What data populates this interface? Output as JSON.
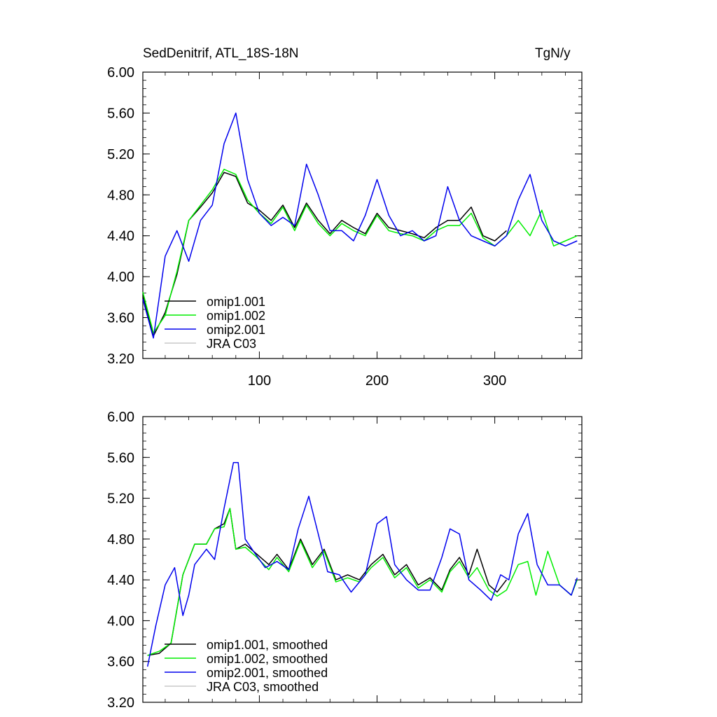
{
  "figure": {
    "title_left": "SedDenitrif, ATL_18S-18N",
    "title_right": "TgN/y"
  },
  "chart_data": [
    {
      "type": "line",
      "panel": "top",
      "xlabel": "",
      "ylabel": "",
      "xlim": [
        1,
        374
      ],
      "ylim": [
        3.2,
        6.0
      ],
      "x_ticks": [
        100,
        200,
        300
      ],
      "x_tick_labels": [
        "100",
        "200",
        "300"
      ],
      "y_ticks": [
        3.2,
        3.6,
        4.0,
        4.4,
        4.8,
        5.2,
        5.6,
        6.0
      ],
      "y_tick_labels": [
        "3.20",
        "3.60",
        "4.00",
        "4.40",
        "4.80",
        "5.20",
        "5.60",
        "6.00"
      ],
      "grid": false,
      "legend_position": "bottom-left",
      "series": [
        {
          "name": "omip1.001",
          "color": "#000000",
          "x": [
            1,
            10,
            20,
            30,
            40,
            50,
            60,
            70,
            80,
            90,
            100,
            110,
            120,
            130,
            140,
            150,
            160,
            170,
            180,
            190,
            200,
            210,
            220,
            230,
            240,
            250,
            260,
            270,
            280,
            290,
            300,
            310
          ],
          "values": [
            3.82,
            3.42,
            3.65,
            4.02,
            4.55,
            4.68,
            4.82,
            5.02,
            4.98,
            4.72,
            4.65,
            4.55,
            4.7,
            4.48,
            4.72,
            4.55,
            4.42,
            4.55,
            4.48,
            4.42,
            4.62,
            4.48,
            4.45,
            4.42,
            4.38,
            4.48,
            4.55,
            4.55,
            4.68,
            4.4,
            4.35,
            4.45
          ]
        },
        {
          "name": "omip1.002",
          "color": "#00ee00",
          "x": [
            1,
            10,
            20,
            30,
            40,
            50,
            60,
            70,
            80,
            90,
            100,
            110,
            120,
            130,
            140,
            150,
            160,
            170,
            180,
            190,
            200,
            210,
            220,
            230,
            240,
            250,
            260,
            270,
            280,
            290,
            300,
            310,
            320,
            330,
            340,
            350,
            360,
            370
          ],
          "values": [
            3.85,
            3.45,
            3.62,
            4.05,
            4.55,
            4.7,
            4.85,
            5.05,
            5.0,
            4.75,
            4.62,
            4.52,
            4.68,
            4.45,
            4.7,
            4.52,
            4.4,
            4.52,
            4.45,
            4.4,
            4.6,
            4.45,
            4.42,
            4.4,
            4.35,
            4.45,
            4.5,
            4.5,
            4.62,
            4.38,
            4.3,
            4.4,
            4.55,
            4.4,
            4.65,
            4.3,
            4.35,
            4.4
          ]
        },
        {
          "name": "omip2.001",
          "color": "#0000ee",
          "x": [
            1,
            10,
            20,
            30,
            40,
            50,
            60,
            70,
            80,
            90,
            100,
            110,
            120,
            130,
            140,
            150,
            160,
            170,
            180,
            190,
            200,
            210,
            220,
            230,
            240,
            250,
            260,
            270,
            280,
            290,
            300,
            310,
            320,
            330,
            340,
            350,
            360,
            370
          ],
          "values": [
            3.78,
            3.4,
            4.2,
            4.45,
            4.15,
            4.55,
            4.7,
            5.3,
            5.6,
            4.95,
            4.62,
            4.5,
            4.58,
            4.5,
            5.1,
            4.8,
            4.45,
            4.45,
            4.35,
            4.6,
            4.95,
            4.6,
            4.4,
            4.45,
            4.35,
            4.4,
            4.88,
            4.55,
            4.4,
            4.35,
            4.3,
            4.4,
            4.75,
            5.0,
            4.55,
            4.35,
            4.3,
            4.35
          ]
        },
        {
          "name": "JRA C03",
          "color": "#c8c8c8",
          "x": [],
          "values": []
        }
      ]
    },
    {
      "type": "line",
      "panel": "bottom",
      "xlabel": "",
      "ylabel": "",
      "xlim": [
        1,
        374
      ],
      "ylim": [
        3.2,
        6.0
      ],
      "x_ticks": [
        100,
        200,
        300
      ],
      "x_tick_labels": [],
      "y_ticks": [
        3.2,
        3.6,
        4.0,
        4.4,
        4.8,
        5.2,
        5.6,
        6.0
      ],
      "y_tick_labels": [
        "3.20",
        "3.60",
        "4.00",
        "4.40",
        "4.80",
        "5.20",
        "5.60",
        "6.00"
      ],
      "grid": false,
      "legend_position": "bottom-left",
      "series": [
        {
          "name": "omip1.001, smoothed",
          "color": "#000000",
          "x": [
            5,
            15,
            25,
            35,
            45,
            55,
            62,
            70,
            75,
            80,
            88,
            98,
            108,
            115,
            125,
            135,
            145,
            155,
            165,
            175,
            185,
            195,
            205,
            215,
            225,
            235,
            245,
            255,
            262,
            270,
            278,
            285,
            295,
            302,
            310
          ],
          "values": [
            3.66,
            3.68,
            3.78,
            4.45,
            4.75,
            4.75,
            4.9,
            4.95,
            5.1,
            4.7,
            4.75,
            4.65,
            4.55,
            4.65,
            4.5,
            4.8,
            4.55,
            4.7,
            4.4,
            4.45,
            4.4,
            4.55,
            4.65,
            4.45,
            4.55,
            4.35,
            4.42,
            4.3,
            4.5,
            4.62,
            4.45,
            4.7,
            4.35,
            4.28,
            4.4
          ]
        },
        {
          "name": "omip1.002, smoothed",
          "color": "#00ee00",
          "x": [
            5,
            15,
            25,
            35,
            45,
            55,
            62,
            70,
            75,
            80,
            88,
            98,
            108,
            115,
            125,
            135,
            145,
            155,
            165,
            175,
            185,
            195,
            205,
            215,
            225,
            235,
            245,
            255,
            262,
            270,
            278,
            285,
            295,
            302,
            310,
            320,
            328,
            335,
            345,
            355,
            365,
            370
          ],
          "values": [
            3.66,
            3.7,
            3.78,
            4.45,
            4.75,
            4.75,
            4.9,
            4.92,
            5.1,
            4.7,
            4.72,
            4.62,
            4.5,
            4.62,
            4.48,
            4.78,
            4.52,
            4.68,
            4.38,
            4.42,
            4.38,
            4.52,
            4.62,
            4.42,
            4.52,
            4.32,
            4.4,
            4.28,
            4.48,
            4.58,
            4.42,
            4.52,
            4.3,
            4.24,
            4.3,
            4.55,
            4.58,
            4.25,
            4.68,
            4.35,
            4.25,
            4.4
          ]
        },
        {
          "name": "omip2.001, smoothed",
          "color": "#0000ee",
          "x": [
            5,
            12,
            20,
            28,
            35,
            40,
            45,
            55,
            62,
            70,
            78,
            82,
            88,
            95,
            105,
            115,
            125,
            133,
            142,
            150,
            158,
            168,
            178,
            190,
            200,
            208,
            215,
            225,
            235,
            245,
            255,
            262,
            270,
            278,
            288,
            297,
            305,
            312,
            320,
            328,
            336,
            345,
            355,
            365,
            370
          ],
          "values": [
            3.55,
            3.95,
            4.35,
            4.52,
            4.05,
            4.25,
            4.55,
            4.7,
            4.6,
            5.1,
            5.55,
            5.55,
            4.8,
            4.68,
            4.52,
            4.58,
            4.5,
            4.9,
            5.22,
            4.85,
            4.48,
            4.45,
            4.28,
            4.45,
            4.95,
            5.02,
            4.55,
            4.4,
            4.3,
            4.3,
            4.62,
            4.9,
            4.85,
            4.4,
            4.3,
            4.2,
            4.45,
            4.4,
            4.85,
            5.05,
            4.55,
            4.35,
            4.35,
            4.25,
            4.42
          ]
        },
        {
          "name": "JRA C03, smoothed",
          "color": "#c8c8c8",
          "x": [],
          "values": []
        }
      ]
    }
  ]
}
